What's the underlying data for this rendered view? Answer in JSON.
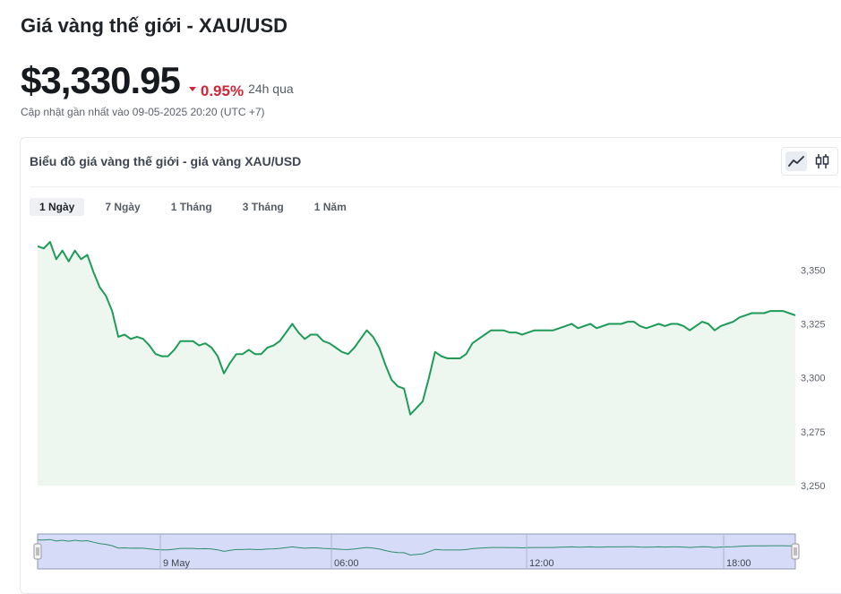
{
  "header": {
    "title": "Giá vàng thế giới - XAU/USD",
    "price": "$3,330.95",
    "change": "0.95%",
    "change_period": "24h qua",
    "updated": "Cập nhật gần nhất vào 09-05-2025 20:20 (UTC +7)"
  },
  "chart_card": {
    "title": "Biểu đồ giá vàng thế giới - giá vàng XAU/USD",
    "ranges": [
      "1 Ngày",
      "7 Ngày",
      "1 Tháng",
      "3 Tháng",
      "1 Năm"
    ],
    "active_range": "1 Ngày"
  },
  "colors": {
    "line": "#1e9b57",
    "fill": "#edf7f0",
    "down": "#d0263a",
    "navigator_fill": "#d6dcf7",
    "navigator_border": "#8f9ab2"
  },
  "icons": {
    "line_type": "trend-line-icon",
    "candle_type": "candlestick-icon"
  },
  "chart_data": {
    "type": "area",
    "ylim": [
      3250,
      3368
    ],
    "yticks": [
      3250,
      3275,
      3300,
      3325,
      3350
    ],
    "ytick_labels": [
      "3,250",
      "3,275",
      "3,300",
      "3,325",
      "3,350"
    ],
    "x": [
      0,
      1,
      2,
      3,
      4,
      5,
      6,
      7,
      8,
      9,
      10,
      11,
      12,
      13,
      14,
      15,
      16,
      17,
      18,
      19,
      20,
      21,
      22,
      23,
      24,
      25,
      26,
      27,
      28,
      29,
      30,
      31,
      32,
      33,
      34,
      35,
      36,
      37,
      38,
      39,
      40,
      41,
      42,
      43,
      44,
      45,
      46,
      47,
      48,
      49,
      50,
      51,
      52,
      53,
      54,
      55,
      56,
      57,
      58,
      59,
      60,
      61,
      62,
      63,
      64,
      65,
      66,
      67,
      68,
      69,
      70,
      71,
      72,
      73,
      74,
      75,
      76,
      77,
      78,
      79,
      80,
      81,
      82,
      83,
      84,
      85,
      86,
      87,
      88,
      89,
      90,
      91,
      92,
      93,
      94,
      95,
      96,
      97,
      98,
      99,
      100,
      101,
      102,
      103,
      104,
      105,
      106,
      107,
      108,
      109,
      110,
      111,
      112,
      113,
      114,
      115,
      116,
      117,
      118,
      119,
      120,
      121,
      122
    ],
    "values": [
      3361,
      3360,
      3363,
      3355,
      3359,
      3354,
      3359,
      3355,
      3357,
      3349,
      3342,
      3338,
      3331,
      3319,
      3320,
      3318,
      3319,
      3318,
      3315,
      3311,
      3310,
      3310,
      3313,
      3317,
      3317,
      3317,
      3315,
      3316,
      3314,
      3310,
      3302,
      3307,
      3311,
      3311,
      3313,
      3311,
      3311,
      3314,
      3315,
      3317,
      3321,
      3325,
      3321,
      3318,
      3320,
      3320,
      3317,
      3316,
      3314,
      3312,
      3311,
      3314,
      3318,
      3322,
      3319,
      3314,
      3306,
      3299,
      3296,
      3295,
      3283,
      3286,
      3289,
      3300,
      3312,
      3310,
      3309,
      3309,
      3309,
      3311,
      3316,
      3318,
      3320,
      3322,
      3322,
      3322,
      3321,
      3321,
      3320,
      3321,
      3322,
      3322,
      3322,
      3322,
      3323,
      3324,
      3325,
      3323,
      3324,
      3325,
      3323,
      3324,
      3325,
      3325,
      3325,
      3326,
      3326,
      3324,
      3323,
      3324,
      3325,
      3324,
      3325,
      3325,
      3324,
      3322,
      3324,
      3326,
      3325,
      3322,
      3324,
      3325,
      3326,
      3328,
      3329,
      3330,
      3330,
      3330,
      3331,
      3331,
      3331,
      3330,
      3329
    ],
    "navigator_xtick_labels": [
      "9 May",
      "06:00",
      "12:00",
      "18:00"
    ]
  }
}
